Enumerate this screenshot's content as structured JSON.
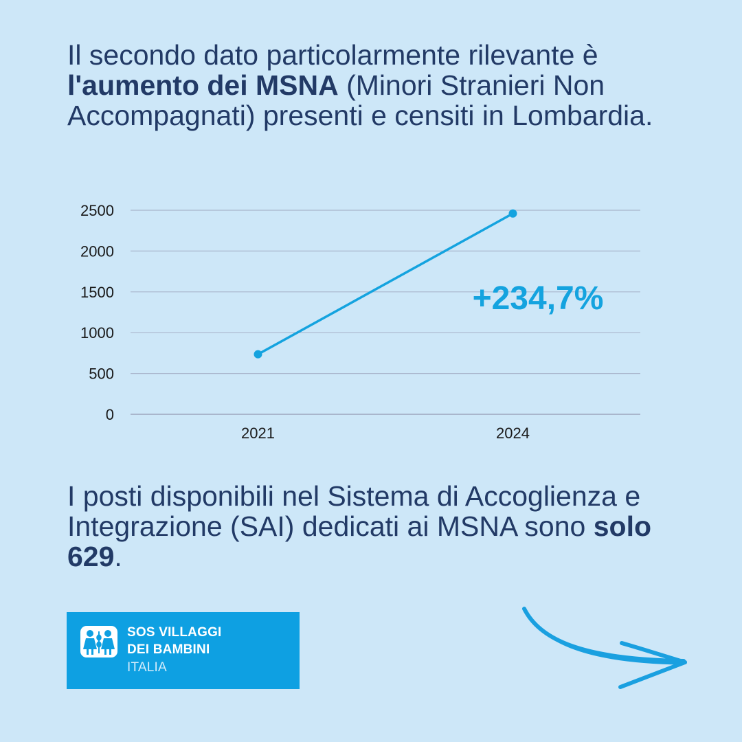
{
  "intro": {
    "part1": "Il secondo dato particolarmente rilevante è ",
    "bold": "l'aumento dei MSNA",
    "part2": " (Minori Stranieri Non Accompagnati) presenti e censiti in Lombardia."
  },
  "chart_data": {
    "type": "line",
    "categories": [
      "2021",
      "2024"
    ],
    "values": [
      735,
      2460
    ],
    "ylim": [
      0,
      2500
    ],
    "y_ticks": [
      "0",
      "500",
      "1000",
      "1500",
      "2000",
      "2500"
    ],
    "title": "",
    "xlabel": "",
    "ylabel": "",
    "grid": true,
    "annotation": "+234,7%",
    "line_color": "#14a3df",
    "grid_color": "#a9b6cc"
  },
  "footer": {
    "part1": "I posti disponibili nel Sistema di Accoglienza e Integrazione (SAI) dedicati ai MSNA sono ",
    "bold": "solo 629",
    "part2": "."
  },
  "logo": {
    "line1": "SOS VILLAGGI",
    "line2": "DEI BAMBINI",
    "line3": "ITALIA",
    "color": "#0ea0e2"
  },
  "arrow": {
    "icon": "arrow-right-icon",
    "color": "#1aa0e0"
  }
}
